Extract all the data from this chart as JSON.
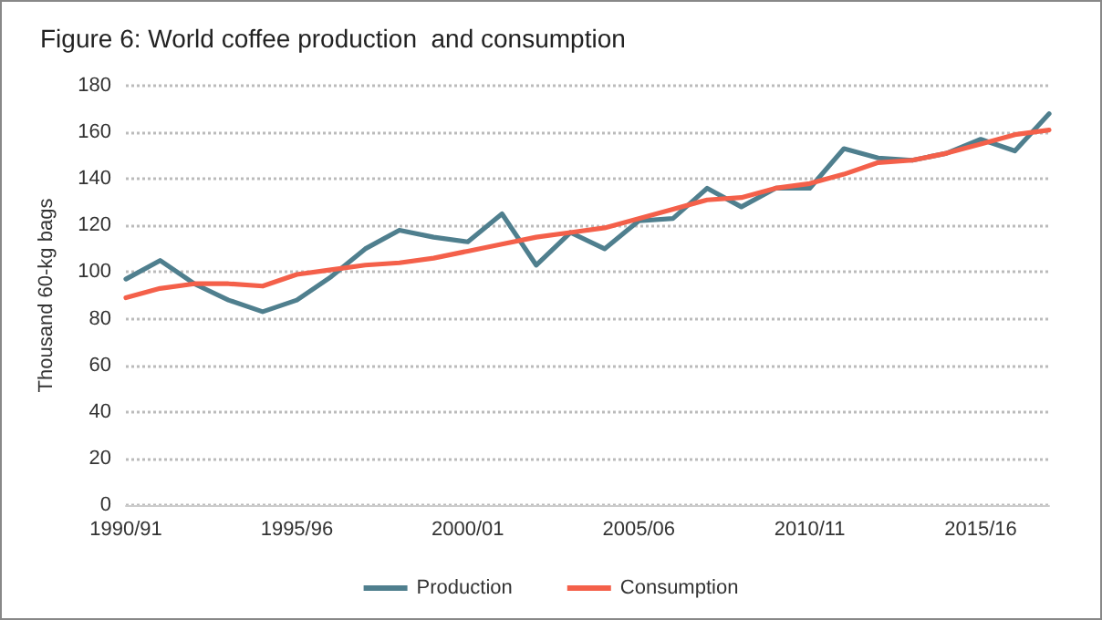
{
  "chart_data": {
    "type": "line",
    "title": "Figure 6: World coffee production  and consumption",
    "ylabel": "Thousand 60-kg bags",
    "categories": [
      "1990/91",
      null,
      null,
      null,
      null,
      "1995/96",
      null,
      null,
      null,
      null,
      "2000/01",
      null,
      null,
      null,
      null,
      "2005/06",
      null,
      null,
      null,
      null,
      "2010/11",
      null,
      null,
      null,
      null,
      "2015/16",
      null,
      null
    ],
    "series": [
      {
        "name": "Production",
        "color": "#4f7f8e",
        "values": [
          97,
          105,
          95,
          88,
          83,
          88,
          98,
          110,
          118,
          115,
          113,
          125,
          103,
          117,
          110,
          122,
          123,
          136,
          128,
          136,
          136,
          153,
          149,
          148,
          151,
          157,
          152,
          168
        ]
      },
      {
        "name": "Consumption",
        "color": "#f4604a",
        "values": [
          89,
          93,
          95,
          95,
          94,
          99,
          101,
          103,
          104,
          106,
          109,
          112,
          115,
          117,
          119,
          123,
          127,
          131,
          132,
          136,
          138,
          142,
          147,
          148,
          151,
          155,
          159,
          161
        ]
      }
    ],
    "ylim": [
      0,
      180
    ],
    "yticks": [
      0,
      20,
      40,
      60,
      80,
      100,
      120,
      140,
      160,
      180
    ],
    "grid": "y",
    "legend": "bottom",
    "marker": "none",
    "line_style": "solid"
  }
}
